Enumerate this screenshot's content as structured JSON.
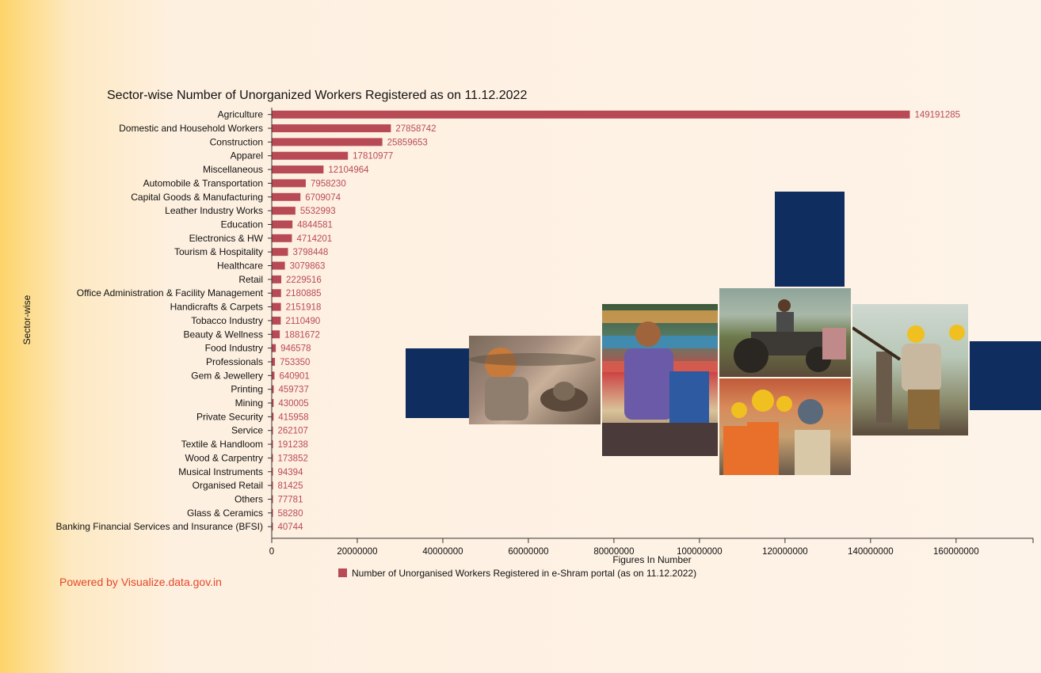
{
  "chart_data": {
    "type": "bar",
    "orientation": "horizontal",
    "title": "Sector-wise Number of Unorganized Workers Registered as on 11.12.2022",
    "xlabel": "Figures In Number",
    "ylabel": "Sector-wise",
    "xlim": [
      0,
      178000000
    ],
    "xticks": [
      "0",
      "20000000",
      "40000000",
      "60000000",
      "80000000",
      "100000000",
      "120000000",
      "140000000",
      "160000000"
    ],
    "grid": false,
    "legend_position": "bottom",
    "bar_color": "#b84a56",
    "categories": [
      "Agriculture",
      "Domestic and Household Workers",
      "Construction",
      "Apparel",
      "Miscellaneous",
      "Automobile & Transportation",
      "Capital Goods & Manufacturing",
      "Leather Industry Works",
      "Education",
      "Electronics & HW",
      "Tourism & Hospitality",
      "Healthcare",
      "Retail",
      "Office Administration & Facility Management",
      "Handicrafts & Carpets",
      "Tobacco Industry",
      "Beauty & Wellness",
      "Food Industry",
      "Professionals",
      "Gem & Jewellery",
      "Printing",
      "Mining",
      "Private Security",
      "Service",
      "Textile & Handloom",
      "Wood & Carpentry",
      "Musical Instruments",
      "Organised Retail",
      "Others",
      "Glass & Ceramics",
      "Banking Financial Services and Insurance (BFSI)"
    ],
    "series": [
      {
        "name": "Number of Unorganised Workers Registered in e-Shram portal (as on 11.12.2022)",
        "values": [
          149191285,
          27858742,
          25859653,
          17810977,
          12104964,
          7958230,
          6709074,
          5532993,
          4844581,
          4714201,
          3798448,
          3079863,
          2229516,
          2180885,
          2151918,
          2110490,
          1881672,
          946578,
          753350,
          640901,
          459737,
          430005,
          415958,
          262107,
          191238,
          173852,
          94394,
          81425,
          77781,
          58280,
          40744
        ]
      }
    ]
  },
  "footer": {
    "powered_by": "Powered by Visualize.data.gov.in"
  },
  "decor": {
    "navy_color": "#0f2d5e",
    "photos": [
      "potter-photo",
      "shopkeeper-photo",
      "tractor-farmer-photo",
      "construction-crew-photo",
      "hammer-worker-photo"
    ]
  }
}
